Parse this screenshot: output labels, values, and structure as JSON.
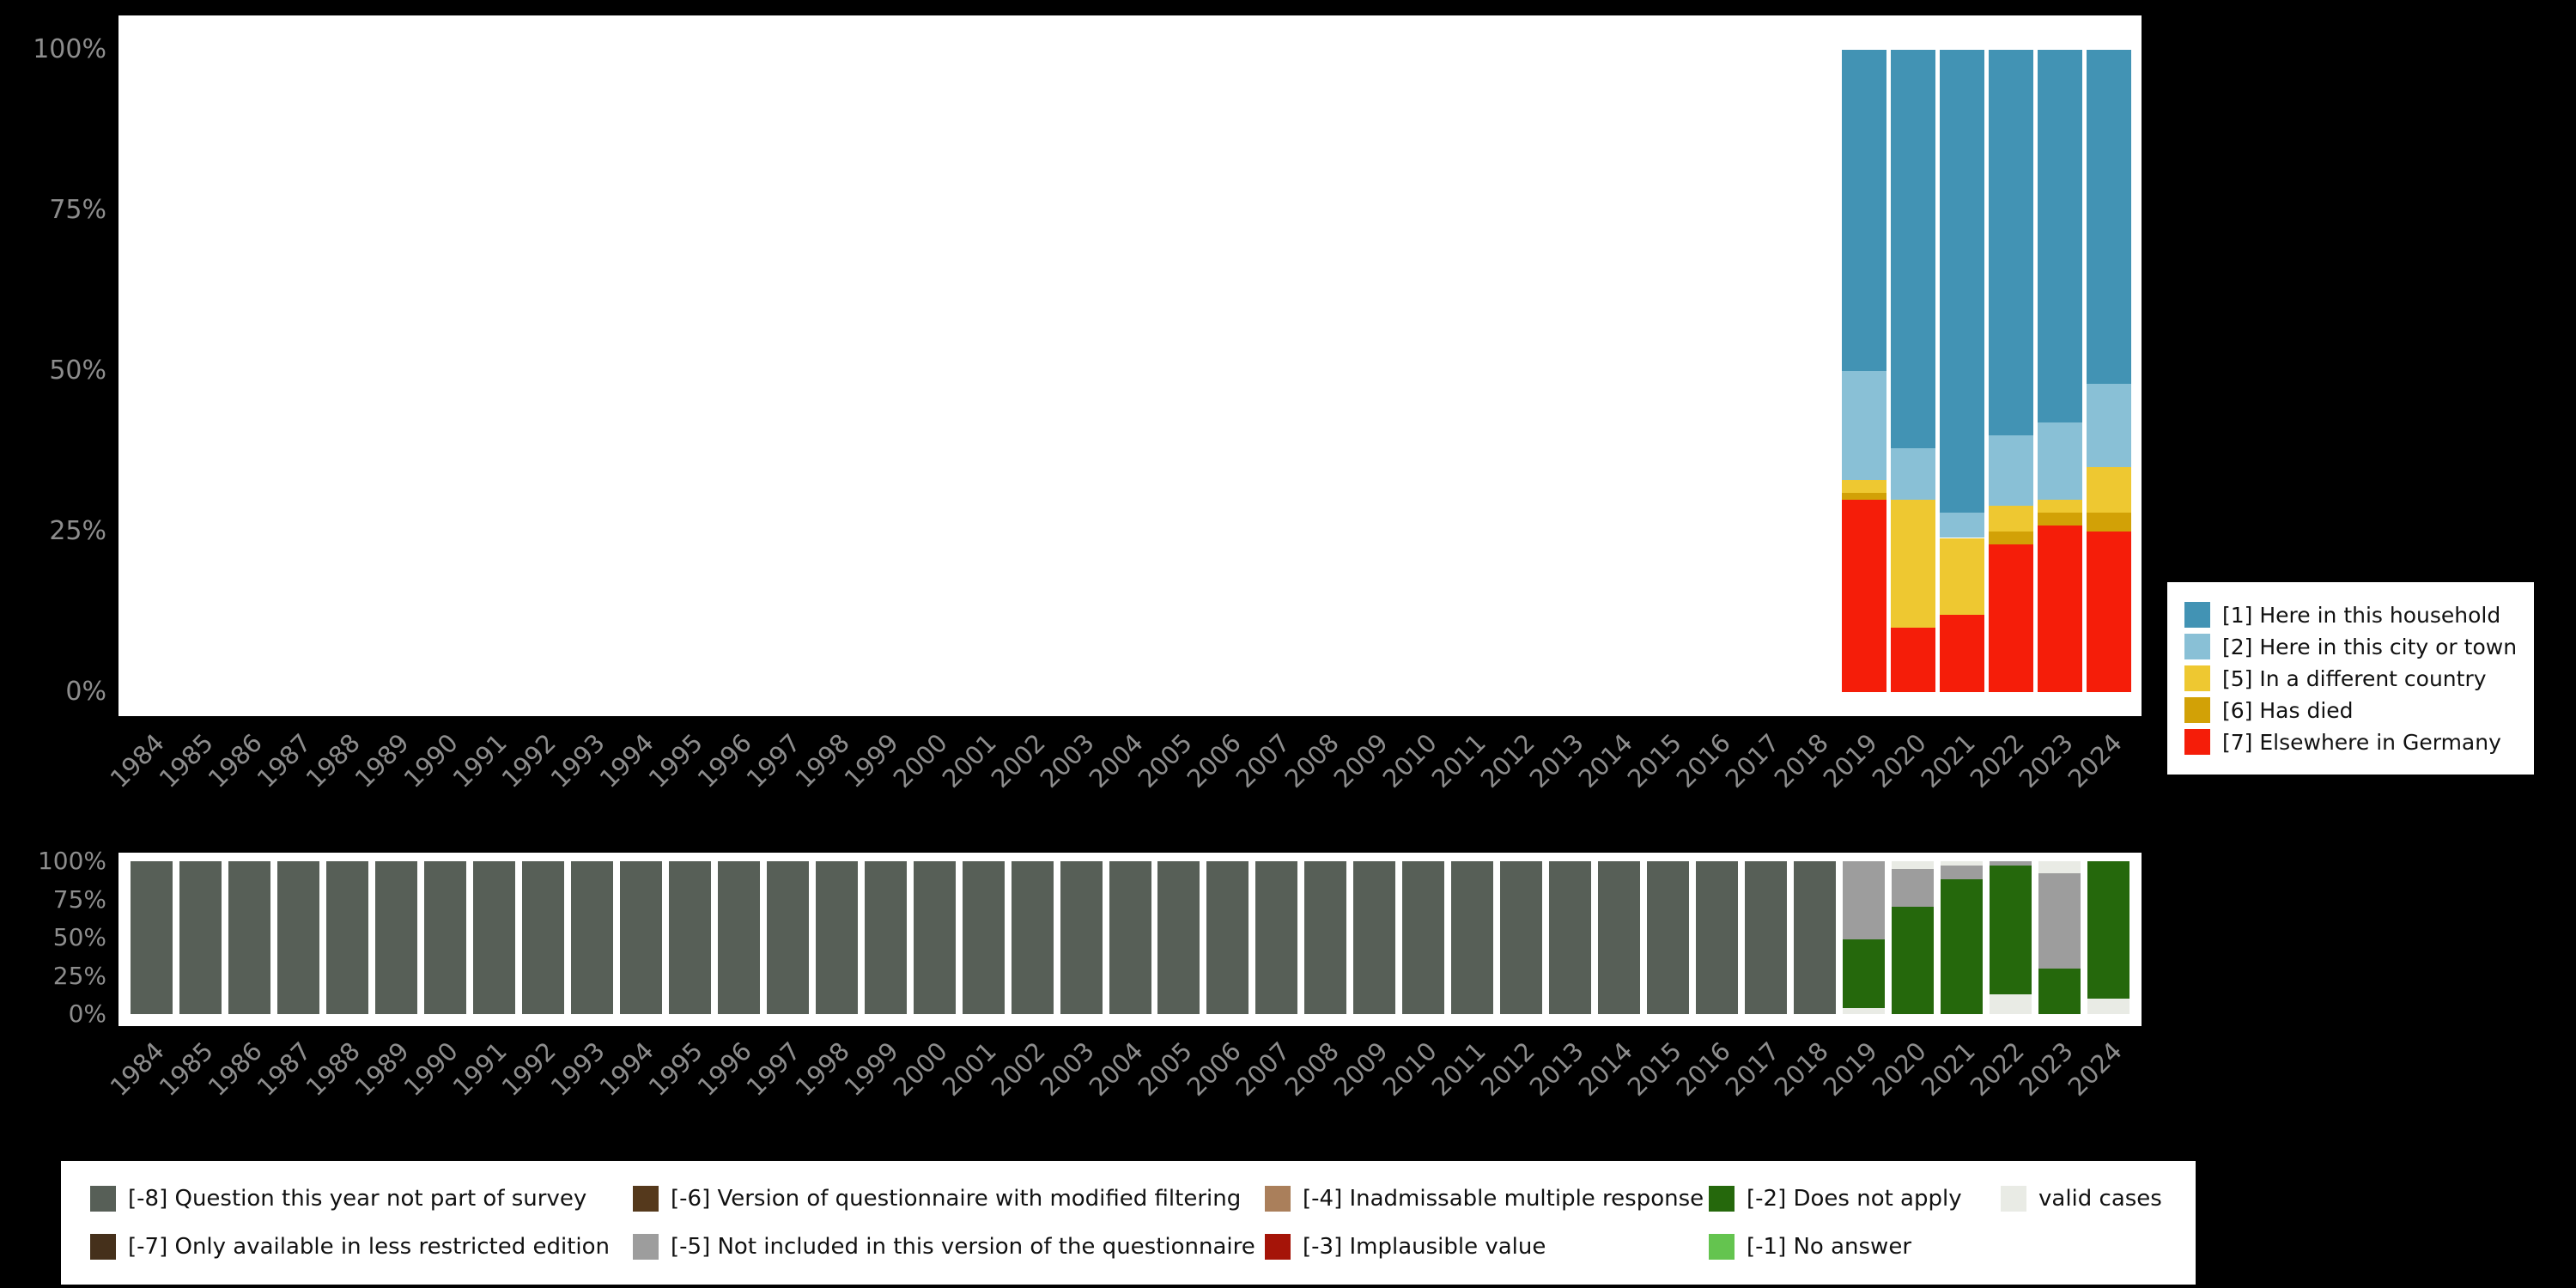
{
  "page": {
    "background": "#000000"
  },
  "chart_data": [
    {
      "id": "frequencies",
      "type": "bar",
      "stacked": true,
      "unit": "percent",
      "title": "",
      "xlabel": "",
      "ylabel": "",
      "ylim": [
        0,
        100
      ],
      "grid": false,
      "legend_position": "right",
      "y_ticks": [
        "100%",
        "75%",
        "50%",
        "25%",
        "0%"
      ],
      "categories": [
        "1984",
        "1985",
        "1986",
        "1987",
        "1988",
        "1989",
        "1990",
        "1991",
        "1992",
        "1993",
        "1994",
        "1995",
        "1996",
        "1997",
        "1998",
        "1999",
        "2000",
        "2001",
        "2002",
        "2003",
        "2004",
        "2005",
        "2006",
        "2007",
        "2008",
        "2009",
        "2010",
        "2011",
        "2012",
        "2013",
        "2014",
        "2015",
        "2016",
        "2017",
        "2018",
        "2019",
        "2020",
        "2021",
        "2022",
        "2023",
        "2024"
      ],
      "legend": [
        {
          "key": "1",
          "label": "[1] Here in this household",
          "color": "#4293b4"
        },
        {
          "key": "2",
          "label": "[2] Here in this city or town",
          "color": "#89c0d6"
        },
        {
          "key": "5",
          "label": "[5] In a different country",
          "color": "#eec831"
        },
        {
          "key": "6",
          "label": "[6] Has died",
          "color": "#d2a106"
        },
        {
          "key": "7",
          "label": "[7] Elsewhere in Germany",
          "color": "#f51d09"
        }
      ],
      "bars": {
        "2019": [
          [
            "7",
            30
          ],
          [
            "6",
            1
          ],
          [
            "5",
            2
          ],
          [
            "2",
            17
          ],
          [
            "1",
            50
          ]
        ],
        "2020": [
          [
            "7",
            10
          ],
          [
            "5",
            20
          ],
          [
            "2",
            8
          ],
          [
            "1",
            62
          ]
        ],
        "2021": [
          [
            "7",
            12
          ],
          [
            "5",
            12
          ],
          [
            "2",
            4
          ],
          [
            "1",
            72
          ]
        ],
        "2022": [
          [
            "7",
            23
          ],
          [
            "6",
            2
          ],
          [
            "5",
            4
          ],
          [
            "2",
            11
          ],
          [
            "1",
            60
          ]
        ],
        "2023": [
          [
            "7",
            26
          ],
          [
            "6",
            2
          ],
          [
            "5",
            2
          ],
          [
            "2",
            12
          ],
          [
            "1",
            58
          ]
        ],
        "2024": [
          [
            "7",
            25
          ],
          [
            "6",
            3
          ],
          [
            "5",
            7
          ],
          [
            "2",
            13
          ],
          [
            "1",
            52
          ]
        ]
      }
    },
    {
      "id": "missings",
      "type": "bar",
      "stacked": true,
      "unit": "percent",
      "title": "",
      "xlabel": "",
      "ylabel": "",
      "ylim": [
        0,
        100
      ],
      "grid": false,
      "legend_position": "bottom",
      "y_ticks": [
        "100%",
        "75%",
        "50%",
        "25%",
        "0%"
      ],
      "categories": [
        "1984",
        "1985",
        "1986",
        "1987",
        "1988",
        "1989",
        "1990",
        "1991",
        "1992",
        "1993",
        "1994",
        "1995",
        "1996",
        "1997",
        "1998",
        "1999",
        "2000",
        "2001",
        "2002",
        "2003",
        "2004",
        "2005",
        "2006",
        "2007",
        "2008",
        "2009",
        "2010",
        "2011",
        "2012",
        "2013",
        "2014",
        "2015",
        "2016",
        "2017",
        "2018",
        "2019",
        "2020",
        "2021",
        "2022",
        "2023",
        "2024"
      ],
      "legend": [
        {
          "key": "-8",
          "label": "[-8] Question this year not part of survey",
          "color": "#575f57"
        },
        {
          "key": "-7",
          "label": "[-7] Only available in less restricted edition",
          "color": "#45301b"
        },
        {
          "key": "-6",
          "label": "[-6] Version of questionnaire with modified filtering",
          "color": "#55391c"
        },
        {
          "key": "-5",
          "label": "[-5] Not included in this version of the questionnaire",
          "color": "#9d9d9d"
        },
        {
          "key": "-4",
          "label": "[-4] Inadmissable multiple response",
          "color": "#aa7f5b"
        },
        {
          "key": "-3",
          "label": "[-3] Implausible value",
          "color": "#a51408"
        },
        {
          "key": "-2",
          "label": "[-2] Does not apply",
          "color": "#25680c"
        },
        {
          "key": "-1",
          "label": "[-1] No answer",
          "color": "#64c44f"
        },
        {
          "key": "valid",
          "label": "valid cases",
          "color": "#e9ebe5"
        }
      ],
      "bars": {
        "1984": [
          [
            "-8",
            100
          ]
        ],
        "1985": [
          [
            "-8",
            100
          ]
        ],
        "1986": [
          [
            "-8",
            100
          ]
        ],
        "1987": [
          [
            "-8",
            100
          ]
        ],
        "1988": [
          [
            "-8",
            100
          ]
        ],
        "1989": [
          [
            "-8",
            100
          ]
        ],
        "1990": [
          [
            "-8",
            100
          ]
        ],
        "1991": [
          [
            "-8",
            100
          ]
        ],
        "1992": [
          [
            "-8",
            100
          ]
        ],
        "1993": [
          [
            "-8",
            100
          ]
        ],
        "1994": [
          [
            "-8",
            100
          ]
        ],
        "1995": [
          [
            "-8",
            100
          ]
        ],
        "1996": [
          [
            "-8",
            100
          ]
        ],
        "1997": [
          [
            "-8",
            100
          ]
        ],
        "1998": [
          [
            "-8",
            100
          ]
        ],
        "1999": [
          [
            "-8",
            100
          ]
        ],
        "2000": [
          [
            "-8",
            100
          ]
        ],
        "2001": [
          [
            "-8",
            100
          ]
        ],
        "2002": [
          [
            "-8",
            100
          ]
        ],
        "2003": [
          [
            "-8",
            100
          ]
        ],
        "2004": [
          [
            "-8",
            100
          ]
        ],
        "2005": [
          [
            "-8",
            100
          ]
        ],
        "2006": [
          [
            "-8",
            100
          ]
        ],
        "2007": [
          [
            "-8",
            100
          ]
        ],
        "2008": [
          [
            "-8",
            100
          ]
        ],
        "2009": [
          [
            "-8",
            100
          ]
        ],
        "2010": [
          [
            "-8",
            100
          ]
        ],
        "2011": [
          [
            "-8",
            100
          ]
        ],
        "2012": [
          [
            "-8",
            100
          ]
        ],
        "2013": [
          [
            "-8",
            100
          ]
        ],
        "2014": [
          [
            "-8",
            100
          ]
        ],
        "2015": [
          [
            "-8",
            100
          ]
        ],
        "2016": [
          [
            "-8",
            100
          ]
        ],
        "2017": [
          [
            "-8",
            100
          ]
        ],
        "2018": [
          [
            "-8",
            100
          ]
        ],
        "2019": [
          [
            "valid",
            4
          ],
          [
            "-2",
            45
          ],
          [
            "-5",
            51
          ]
        ],
        "2020": [
          [
            "-2",
            70
          ],
          [
            "-5",
            25
          ],
          [
            "valid",
            5
          ]
        ],
        "2021": [
          [
            "-2",
            88
          ],
          [
            "-5",
            9
          ],
          [
            "valid",
            3
          ]
        ],
        "2022": [
          [
            "valid",
            13
          ],
          [
            "-2",
            84
          ],
          [
            "-5",
            3
          ]
        ],
        "2023": [
          [
            "-2",
            30
          ],
          [
            "-5",
            62
          ],
          [
            "valid",
            8
          ]
        ],
        "2024": [
          [
            "valid",
            10
          ],
          [
            "-2",
            90
          ]
        ]
      }
    }
  ]
}
